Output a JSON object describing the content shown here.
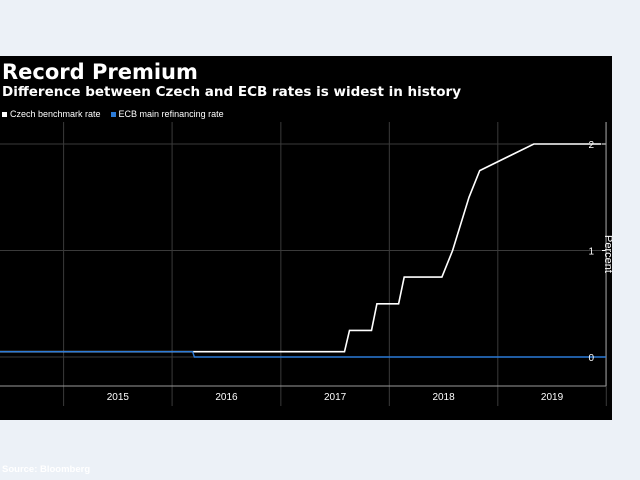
{
  "chart_data": {
    "type": "line",
    "title": "Record Premium",
    "subtitle": "Difference between Czech and ECB rates is widest in history",
    "ylabel": "Percent",
    "xlabel": "",
    "source": "Source: Bloomberg",
    "ylim": [
      0,
      2
    ],
    "xlim": [
      "2014-06-01",
      "2019-12-31"
    ],
    "x_ticks": [
      "2015",
      "2016",
      "2017",
      "2018",
      "2019"
    ],
    "y_ticks": [
      0,
      1,
      2
    ],
    "grid": true,
    "legend_position": "top-left",
    "series": [
      {
        "name": "Czech benchmark rate",
        "color": "#ffffff",
        "x": [
          "2014-06-01",
          "2017-08-03",
          "2017-08-20",
          "2017-11-02",
          "2017-11-20",
          "2018-02-01",
          "2018-02-20",
          "2018-06-27",
          "2018-08-02",
          "2018-09-26",
          "2018-11-01",
          "2019-05-02",
          "2019-12-15"
        ],
        "values": [
          0.05,
          0.05,
          0.25,
          0.25,
          0.5,
          0.5,
          0.75,
          0.75,
          1.0,
          1.5,
          1.75,
          2.0,
          2.0
        ]
      },
      {
        "name": "ECB main refinancing rate",
        "color": "#2b7bd8",
        "x": [
          "2014-06-01",
          "2016-03-10",
          "2016-03-16",
          "2019-12-31"
        ],
        "values": [
          0.05,
          0.05,
          0.0,
          0.0
        ]
      }
    ]
  }
}
